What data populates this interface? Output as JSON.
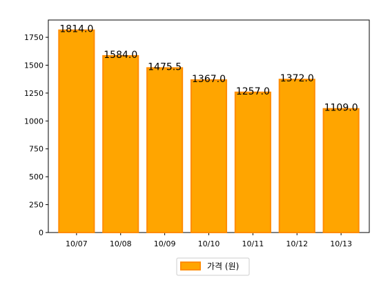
{
  "chart_data": {
    "type": "bar",
    "categories": [
      "10/07",
      "10/08",
      "10/09",
      "10/10",
      "10/11",
      "10/12",
      "10/13"
    ],
    "values": [
      1814.0,
      1584.0,
      1475.5,
      1367.0,
      1257.0,
      1372.0,
      1109.0
    ],
    "data_labels": [
      "1814.0",
      "1584.0",
      "1475.5",
      "1367.0",
      "1257.0",
      "1372.0",
      "1109.0"
    ],
    "series": [
      {
        "name": "가격 (원)",
        "values": [
          1814.0,
          1584.0,
          1475.5,
          1367.0,
          1257.0,
          1372.0,
          1109.0
        ]
      }
    ],
    "title": "",
    "xlabel": "",
    "ylabel": "",
    "ylim": [
      0,
      1905
    ],
    "yticks": [
      0,
      250,
      500,
      750,
      1000,
      1250,
      1500,
      1750
    ],
    "ytick_labels": [
      "0",
      "250",
      "500",
      "750",
      "1000",
      "1250",
      "1500",
      "1750"
    ],
    "grid": false,
    "legend_position": "bottom-center",
    "bar_color": "#FFA500",
    "bar_edge_color": "#FF8C00"
  }
}
